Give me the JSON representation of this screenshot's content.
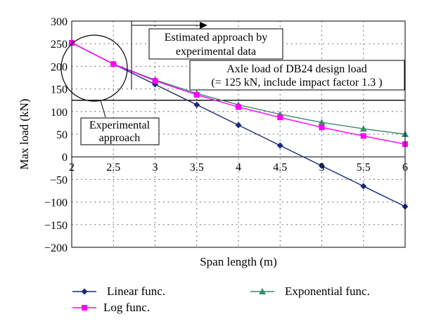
{
  "chart_data": {
    "type": "line",
    "xlabel": "Span length (m)",
    "ylabel": "Max load (kN)",
    "xlim": [
      2,
      6
    ],
    "ylim": [
      -200,
      300
    ],
    "xticks": [
      2,
      2.5,
      3,
      3.5,
      4,
      4.5,
      5,
      5.5,
      6
    ],
    "yticks": [
      300,
      250,
      200,
      150,
      100,
      50,
      0,
      -50,
      -100,
      -150,
      -200
    ],
    "xtick_labels": [
      "2",
      "2.5",
      "3",
      "3.5",
      "4",
      "4.5",
      "5",
      "5.5",
      "6"
    ],
    "ytick_labels": [
      "300",
      "250",
      "200",
      "150",
      "100",
      "50",
      "0",
      "−50",
      "−100",
      "−150",
      "−200"
    ],
    "grid": "dotted",
    "x": [
      2,
      2.5,
      3,
      3.5,
      4,
      4.5,
      5,
      5.5,
      6
    ],
    "series": [
      {
        "name": "Linear func.",
        "color": "#1a2a7a",
        "marker": "diamond",
        "values": [
          252,
          205,
          160,
          115,
          70,
          25,
          -20,
          -65,
          -110
        ]
      },
      {
        "name": "Log func.",
        "color": "#ff00ff",
        "marker": "square",
        "values": [
          252,
          205,
          168,
          137,
          110,
          87,
          65,
          46,
          28
        ]
      },
      {
        "name": "Exponential func.",
        "color": "#3a8a6e",
        "marker": "triangle",
        "values": [
          252,
          205,
          170,
          140,
          115,
          94,
          76,
          62,
          50
        ]
      }
    ],
    "reference_line": {
      "y": 125
    },
    "annotations": {
      "estimated": [
        "Estimated approach by",
        "experimental data"
      ],
      "axle": [
        "Axle load of DB24 design load",
        "(= 125 kN, include impact factor 1.3 )"
      ],
      "experimental": [
        "Experimental",
        "approach"
      ]
    },
    "legend_placement": "bottom"
  }
}
